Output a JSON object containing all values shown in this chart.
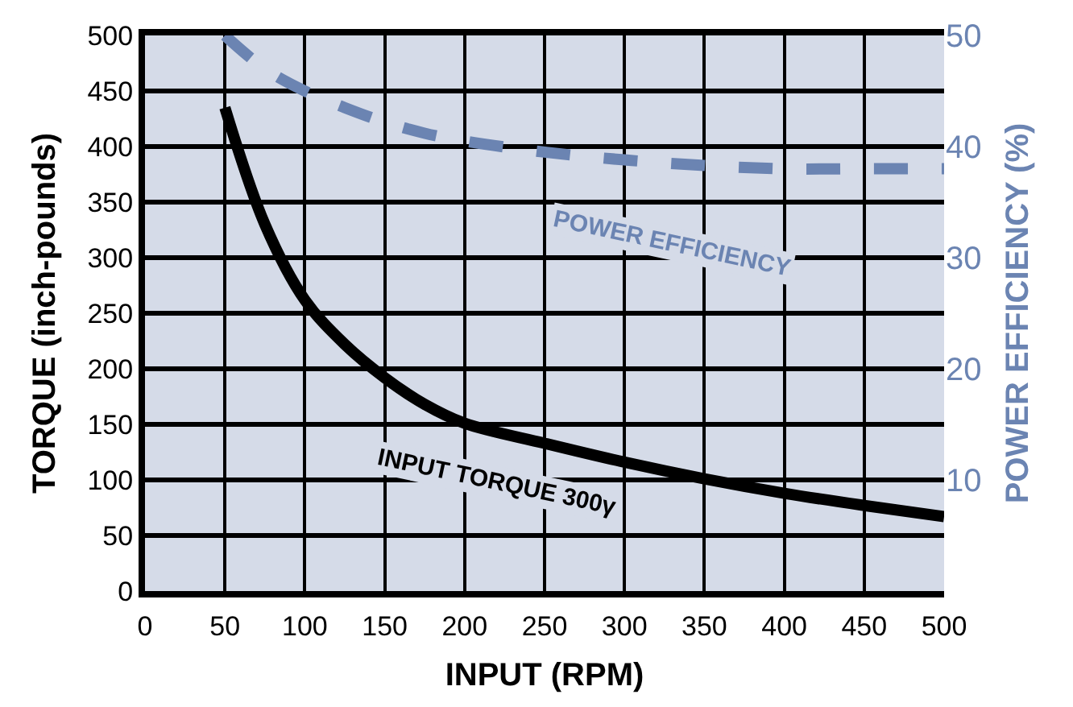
{
  "chart_data": {
    "type": "line",
    "xlabel": "INPUT (RPM)",
    "ylabel": "TORQUE (inch-pounds)",
    "y2label": "POWER EFFICIENCY (%)",
    "xlim": [
      0,
      500
    ],
    "xticks": [
      0,
      50,
      100,
      150,
      200,
      250,
      300,
      350,
      400,
      450,
      500
    ],
    "ylim": [
      0,
      500
    ],
    "yticks": [
      0,
      50,
      100,
      150,
      200,
      250,
      300,
      350,
      400,
      450,
      500
    ],
    "y2lim": [
      0,
      50
    ],
    "y2ticks": [
      10,
      20,
      30,
      40,
      50
    ],
    "grid": true,
    "legend": false,
    "series": [
      {
        "color": "#000000",
        "line_style": "solid",
        "x": [
          50,
          75,
          100,
          125,
          150,
          175,
          200,
          250,
          300,
          350,
          400,
          450,
          500
        ],
        "values": [
          435,
          330,
          262,
          222,
          192,
          168,
          151,
          133,
          116,
          101,
          88,
          77,
          67
        ]
      },
      {
        "color": "#6b84b2",
        "line_style": "dashed",
        "axis": "y2",
        "x": [
          50,
          75,
          100,
          125,
          150,
          175,
          200,
          250,
          300,
          350,
          400,
          450,
          500
        ],
        "values": [
          50,
          47,
          45,
          43.5,
          42.2,
          41.2,
          40.5,
          39.5,
          38.8,
          38.3,
          38,
          38,
          38
        ]
      }
    ],
    "annotations": [
      "POWER EFFICIENCY",
      "INPUT TORQUE 300γ"
    ]
  }
}
